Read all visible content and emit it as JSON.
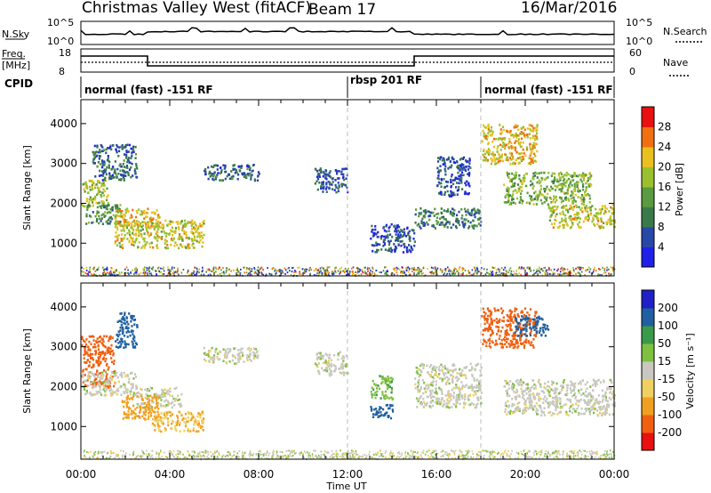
{
  "header": {
    "station": "Christmas Valley West (fitACF)",
    "beam": "Beam 17",
    "date": "16/Mar/2016"
  },
  "strips": {
    "nsky_label": "N.Sky",
    "nsky_ticks": [
      "10^5",
      "10^0"
    ],
    "nsearch_label": "N.Search",
    "nsearch_ticks": [
      "10^5",
      "10^0"
    ],
    "freq_label": [
      "Freq.",
      "[MHz]"
    ],
    "freq_ticks": [
      "18",
      "8"
    ],
    "nave_label": "Nave",
    "nave_ticks": [
      "60",
      "0"
    ],
    "cpid_label": "CPID"
  },
  "cpid_segments": [
    {
      "name": "normal (fast) -151 RF",
      "start_hour": 0,
      "end_hour": 12
    },
    {
      "name": "rbsp 201 RF",
      "start_hour": 12,
      "end_hour": 18
    },
    {
      "name": "normal (fast) -151 RF",
      "start_hour": 18,
      "end_hour": 24
    }
  ],
  "chart_data": [
    {
      "type": "heatmap",
      "name": "power",
      "xlabel": "",
      "ylabel": "Slant Range [km]",
      "xlim": [
        0,
        24
      ],
      "ylim": [
        180,
        4600
      ],
      "yticks": [
        1000,
        2000,
        3000,
        4000
      ],
      "colorbar_label": "Power [dB]",
      "colorbar_ticks": [
        "28",
        "24",
        "20",
        "16",
        "12",
        "8",
        "4"
      ],
      "colors": [
        "#2020e8",
        "#2848a8",
        "#3a7a4a",
        "#5a9a40",
        "#9ac030",
        "#e8c020",
        "#f07010",
        "#e81010"
      ],
      "clusters": [
        {
          "t": [
            0.0,
            1.2
          ],
          "r": [
            1900,
            2600
          ],
          "v": 18
        },
        {
          "t": [
            0.2,
            1.8
          ],
          "r": [
            1500,
            2000
          ],
          "v": 12
        },
        {
          "t": [
            1.5,
            3.5
          ],
          "r": [
            1400,
            1900
          ],
          "v": 22
        },
        {
          "t": [
            1.5,
            5.5
          ],
          "r": [
            900,
            1600
          ],
          "v": 20
        },
        {
          "t": [
            0.5,
            2.5
          ],
          "r": [
            2600,
            3500
          ],
          "v": 8
        },
        {
          "t": [
            5.5,
            8.0
          ],
          "r": [
            2600,
            3000
          ],
          "v": 8
        },
        {
          "t": [
            10.5,
            12.0
          ],
          "r": [
            2300,
            2900
          ],
          "v": 6
        },
        {
          "t": [
            13.0,
            15.0
          ],
          "r": [
            800,
            1500
          ],
          "v": 6
        },
        {
          "t": [
            15.0,
            18.0
          ],
          "r": [
            1400,
            1900
          ],
          "v": 10
        },
        {
          "t": [
            16.0,
            17.5
          ],
          "r": [
            2200,
            3200
          ],
          "v": 6
        },
        {
          "t": [
            18.0,
            20.5
          ],
          "r": [
            3000,
            4000
          ],
          "v": 22
        },
        {
          "t": [
            19.0,
            23.0
          ],
          "r": [
            2000,
            2800
          ],
          "v": 16
        },
        {
          "t": [
            21.0,
            24.0
          ],
          "r": [
            1400,
            2000
          ],
          "v": 20
        }
      ]
    },
    {
      "type": "heatmap",
      "name": "velocity",
      "xlabel": "Time UT",
      "ylabel": "Slant Range [km]",
      "xlim": [
        0,
        24
      ],
      "ylim": [
        180,
        4600
      ],
      "xticks": [
        "00:00",
        "04:00",
        "08:00",
        "12:00",
        "16:00",
        "20:00",
        "00:00"
      ],
      "yticks": [
        1000,
        2000,
        3000,
        4000
      ],
      "colorbar_label": "Velocity [m s⁻¹]",
      "colorbar_ticks": [
        "200",
        "100",
        "50",
        "15",
        "-15",
        "-50",
        "-100",
        "-200"
      ],
      "colors": [
        "#e81010",
        "#f06010",
        "#f0a020",
        "#f0d060",
        "#c8c8c0",
        "#80c040",
        "#3a9a4a",
        "#2060a0",
        "#2020c8"
      ],
      "clusters": [
        {
          "t": [
            0.0,
            1.5
          ],
          "r": [
            2000,
            3300
          ],
          "v": -120
        },
        {
          "t": [
            1.5,
            2.5
          ],
          "r": [
            3000,
            3900
          ],
          "v": 150
        },
        {
          "t": [
            0.0,
            2.5
          ],
          "r": [
            1800,
            2400
          ],
          "v": 0
        },
        {
          "t": [
            2.5,
            4.5
          ],
          "r": [
            1500,
            2000
          ],
          "v": 0
        },
        {
          "t": [
            1.8,
            3.5
          ],
          "r": [
            1200,
            1800
          ],
          "v": -80
        },
        {
          "t": [
            3.0,
            5.5
          ],
          "r": [
            900,
            1400
          ],
          "v": -50
        },
        {
          "t": [
            5.5,
            8.0
          ],
          "r": [
            2600,
            3000
          ],
          "v": 0
        },
        {
          "t": [
            10.5,
            12.0
          ],
          "r": [
            2300,
            2900
          ],
          "v": 0
        },
        {
          "t": [
            13.0,
            14.0
          ],
          "r": [
            1200,
            1600
          ],
          "v": 180
        },
        {
          "t": [
            13.0,
            14.0
          ],
          "r": [
            1700,
            2300
          ],
          "v": 40
        },
        {
          "t": [
            15.0,
            18.0
          ],
          "r": [
            1500,
            2600
          ],
          "v": 0
        },
        {
          "t": [
            18.0,
            20.5
          ],
          "r": [
            3000,
            4000
          ],
          "v": -150
        },
        {
          "t": [
            19.5,
            21.0
          ],
          "r": [
            3300,
            3800
          ],
          "v": 180
        },
        {
          "t": [
            19.0,
            24.0
          ],
          "r": [
            1300,
            2200
          ],
          "v": 0
        }
      ]
    }
  ]
}
